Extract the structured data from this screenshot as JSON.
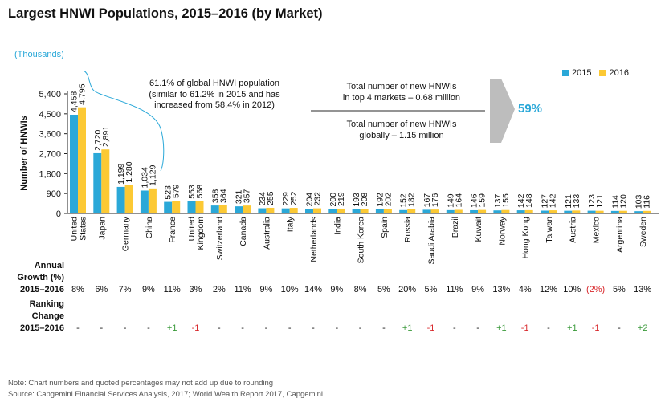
{
  "title": "Largest HNWI Populations, 2015–2016 (by Market)",
  "units_label": "(Thousands)",
  "colors": {
    "s2015": "#2aa8d8",
    "s2016": "#fcc934",
    "positive": "#3a9a3a",
    "negative": "#d8282c",
    "arrow": "#bdbdbd"
  },
  "callouts": {
    "share_line1": "61.1% of global HNWI population",
    "share_line2": "(similar to 61.2% in 2015 and has",
    "share_line3": "increased from 58.4% in 2012)",
    "top4_line1": "Total number of new HNWIs",
    "top4_line2": "in top 4 markets – 0.68 million",
    "global_line1": "Total number of new HNWIs",
    "global_line2": "globally – 1.15 million",
    "pct": "59%"
  },
  "row_labels": {
    "growth_line1": "Annual",
    "growth_line2": "Growth (%)",
    "growth_line3": "2015–2016",
    "rank_line1": "Ranking",
    "rank_line2": "Change",
    "rank_line3": "2015–2016"
  },
  "footnote": {
    "note": "Note: Chart numbers and quoted percentages may not add up due to rounding",
    "source": "Source: Capgemini Financial Services Analysis, 2017; World Wealth Report 2017, Capgemini"
  },
  "chart_data": {
    "type": "bar",
    "ylabel": "Number of HNWIs",
    "ylim": [
      0,
      5400
    ],
    "yticks": [
      0,
      900,
      1800,
      2700,
      3600,
      4500,
      5400
    ],
    "ytick_labels": [
      "0",
      "900",
      "1,800",
      "2,700",
      "3,600",
      "4,500",
      "5,400"
    ],
    "categories": [
      "United States",
      "Japan",
      "Germany",
      "China",
      "France",
      "United Kingdom",
      "Switzerland",
      "Canada",
      "Australia",
      "Italy",
      "Netherlands",
      "India",
      "South Korea",
      "Spain",
      "Russia",
      "Saudi Arabia",
      "Brazil",
      "Kuwait",
      "Norway",
      "Hong Kong",
      "Taiwan",
      "Austria",
      "Mexico",
      "Argentina",
      "Sweden"
    ],
    "category_lines": [
      [
        "United",
        "States"
      ],
      [
        "Japan"
      ],
      [
        "Germany"
      ],
      [
        "China"
      ],
      [
        "France"
      ],
      [
        "United",
        "Kingdom"
      ],
      [
        "Switzerland"
      ],
      [
        "Canada"
      ],
      [
        "Australia"
      ],
      [
        "Italy"
      ],
      [
        "Netherlands"
      ],
      [
        "India"
      ],
      [
        "South Korea"
      ],
      [
        "Spain"
      ],
      [
        "Russia"
      ],
      [
        "Saudi Arabia"
      ],
      [
        "Brazil"
      ],
      [
        "Kuwait"
      ],
      [
        "Norway"
      ],
      [
        "Hong Kong"
      ],
      [
        "Taiwan"
      ],
      [
        "Austria"
      ],
      [
        "Mexico"
      ],
      [
        "Argentina"
      ],
      [
        "Sweden"
      ]
    ],
    "series": [
      {
        "name": "2015",
        "values": [
          4458,
          2720,
          1199,
          1034,
          523,
          553,
          358,
          321,
          234,
          229,
          204,
          200,
          193,
          192,
          152,
          167,
          149,
          146,
          137,
          142,
          127,
          121,
          123,
          114,
          103
        ],
        "labels": [
          "4,458",
          "2,720",
          "1,199",
          "1,034",
          "523",
          "553",
          "358",
          "321",
          "234",
          "229",
          "204",
          "200",
          "193",
          "192",
          "152",
          "167",
          "149",
          "146",
          "137",
          "142",
          "127",
          "121",
          "123",
          "114",
          "103"
        ]
      },
      {
        "name": "2016",
        "values": [
          4795,
          2891,
          1280,
          1129,
          579,
          568,
          364,
          357,
          255,
          252,
          232,
          219,
          208,
          202,
          182,
          176,
          164,
          159,
          155,
          148,
          142,
          133,
          121,
          120,
          116
        ],
        "labels": [
          "4,795",
          "2,891",
          "1,280",
          "1,129",
          "579",
          "568",
          "364",
          "357",
          "255",
          "252",
          "232",
          "219",
          "208",
          "202",
          "182",
          "176",
          "164",
          "159",
          "155",
          "148",
          "142",
          "133",
          "121",
          "120",
          "116"
        ]
      }
    ],
    "annual_growth": [
      "8%",
      "6%",
      "7%",
      "9%",
      "11%",
      "3%",
      "2%",
      "11%",
      "9%",
      "10%",
      "14%",
      "9%",
      "8%",
      "5%",
      "20%",
      "5%",
      "11%",
      "9%",
      "13%",
      "4%",
      "12%",
      "10%",
      "(2%)",
      "5%",
      "13%"
    ],
    "ranking_change": [
      "-",
      "-",
      "-",
      "-",
      "+1",
      "-1",
      "-",
      "-",
      "-",
      "-",
      "-",
      "-",
      "-",
      "-",
      "+1",
      "-1",
      "-",
      "-",
      "+1",
      "-1",
      "-",
      "+1",
      "-1",
      "-",
      "+2"
    ],
    "legend_placement": "top-right",
    "grid": false
  }
}
